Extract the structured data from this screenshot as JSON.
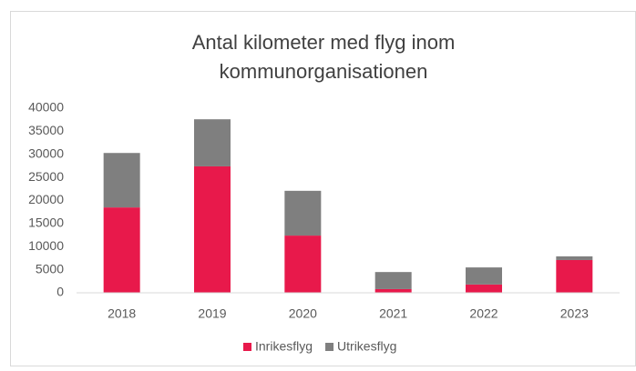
{
  "chart_data": {
    "type": "stacked-bar",
    "title": [
      "Antal kilometer med flyg inom",
      "kommunorganisationen"
    ],
    "categories": [
      "2018",
      "2019",
      "2020",
      "2021",
      "2022",
      "2023"
    ],
    "series": [
      {
        "name": "Inrikesflyg",
        "color": "#e8194b",
        "values": [
          18500,
          27400,
          12400,
          800,
          1800,
          7100
        ]
      },
      {
        "name": "Utrikesflyg",
        "color": "#7f7f7f",
        "values": [
          11800,
          10200,
          9700,
          3700,
          3700,
          800
        ]
      }
    ],
    "ylim": [
      0,
      40000
    ],
    "yticks": [
      0,
      5000,
      10000,
      15000,
      20000,
      25000,
      30000,
      35000,
      40000
    ],
    "grid": false,
    "legend": "bottom"
  }
}
